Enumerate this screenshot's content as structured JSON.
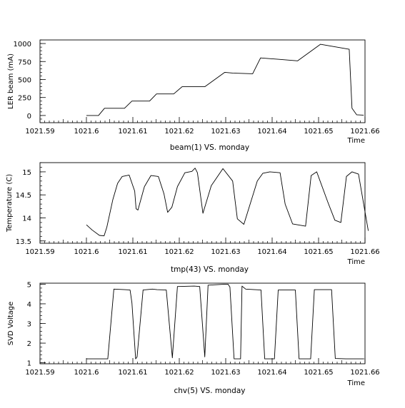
{
  "chart_data": [
    {
      "type": "line",
      "caption": "beam(1) VS. monday",
      "ylabel": "LER beam (mA)",
      "xlabel": "Time",
      "xlim": [
        1021.59,
        1021.66
      ],
      "ylim": [
        -100,
        1050
      ],
      "x_ticks": [
        1021.59,
        1021.6,
        1021.61,
        1021.62,
        1021.63,
        1021.64,
        1021.65,
        1021.66
      ],
      "x_tick_labels": [
        "1021.59",
        "1021.6",
        "1021.61",
        "1021.62",
        "1021.63",
        "1021.64",
        "1021.65",
        "1021.66"
      ],
      "y_ticks": [
        0,
        250,
        500,
        750,
        1000
      ],
      "y_tick_labels": [
        "0",
        "250",
        "500",
        "750",
        "1000"
      ],
      "series": [
        {
          "x": [
            1021.6,
            1021.6026,
            1021.6039,
            1021.6082,
            1021.6098,
            1021.6136,
            1021.6151,
            1021.6188,
            1021.6206,
            1021.6243,
            1021.6255,
            1021.6298,
            1021.6315,
            1021.6358,
            1021.6375,
            1021.6415,
            1021.6455,
            1021.6504,
            1021.6566,
            1021.6572,
            1021.6582,
            1021.6597
          ],
          "y": [
            0,
            0,
            100,
            100,
            200,
            200,
            300,
            300,
            400,
            400,
            400,
            600,
            590,
            580,
            800,
            780,
            760,
            990,
            920,
            100,
            10,
            5
          ]
        }
      ]
    },
    {
      "type": "line",
      "caption": "tmp(43) VS. monday",
      "ylabel": "Temperature (C)",
      "xlabel": "Time",
      "xlim": [
        1021.59,
        1021.66
      ],
      "ylim": [
        13.45,
        15.2
      ],
      "x_ticks": [
        1021.59,
        1021.6,
        1021.61,
        1021.62,
        1021.63,
        1021.64,
        1021.65,
        1021.66
      ],
      "x_tick_labels": [
        "1021.59",
        "1021.6",
        "1021.61",
        "1021.62",
        "1021.63",
        "1021.64",
        "1021.65",
        "1021.66"
      ],
      "y_ticks": [
        13.5,
        14,
        14.5,
        15
      ],
      "y_tick_labels": [
        "13.5",
        "14",
        "14.5",
        "15"
      ],
      "series": [
        {
          "x": [
            1021.6,
            1021.6012,
            1021.6028,
            1021.6038,
            1021.6044,
            1021.6057,
            1021.6067,
            1021.6077,
            1021.6092,
            1021.6104,
            1021.6107,
            1021.6111,
            1021.6125,
            1021.6139,
            1021.6155,
            1021.6167,
            1021.6175,
            1021.6184,
            1021.6196,
            1021.6212,
            1021.6227,
            1021.6234,
            1021.6239,
            1021.6251,
            1021.6269,
            1021.6294,
            1021.6315,
            1021.6325,
            1021.6339,
            1021.6368,
            1021.638,
            1021.6395,
            1021.6417,
            1021.6428,
            1021.6444,
            1021.6472,
            1021.6484,
            1021.6496,
            1021.652,
            1021.6535,
            1021.6548,
            1021.656,
            1021.6572,
            1021.6586,
            1021.6607
          ],
          "y": [
            13.85,
            13.74,
            13.62,
            13.61,
            13.8,
            14.4,
            14.75,
            14.9,
            14.93,
            14.58,
            14.2,
            14.17,
            14.68,
            14.92,
            14.9,
            14.52,
            14.12,
            14.23,
            14.68,
            14.98,
            15.01,
            15.08,
            14.98,
            14.1,
            14.7,
            15.07,
            14.8,
            13.98,
            13.86,
            14.8,
            14.97,
            15.0,
            14.98,
            14.3,
            13.87,
            13.82,
            14.92,
            15.0,
            14.34,
            13.95,
            13.9,
            14.9,
            15.0,
            14.95,
            13.72
          ]
        }
      ]
    },
    {
      "type": "line",
      "caption": "chv(5) VS. monday",
      "ylabel": "SVD Voltage",
      "xlabel": "Time",
      "xlim": [
        1021.59,
        1021.66
      ],
      "ylim": [
        0.95,
        5.05
      ],
      "x_ticks": [
        1021.59,
        1021.6,
        1021.61,
        1021.62,
        1021.63,
        1021.64,
        1021.65,
        1021.66
      ],
      "x_tick_labels": [
        "1021.59",
        "1021.6",
        "1021.61",
        "1021.62",
        "1021.63",
        "1021.64",
        "1021.65",
        "1021.66"
      ],
      "y_ticks": [
        1,
        2,
        3,
        4,
        5
      ],
      "y_tick_labels": [
        "1",
        "2",
        "3",
        "4",
        "5"
      ],
      "series": [
        {
          "x": [
            1021.6,
            1021.6034,
            1021.6046,
            1021.6059,
            1021.6083,
            1021.6094,
            1021.6098,
            1021.6106,
            1021.6109,
            1021.6122,
            1021.6142,
            1021.6152,
            1021.6172,
            1021.6185,
            1021.6196,
            1021.6232,
            1021.6244,
            1021.6255,
            1021.6262,
            1021.6298,
            1021.6305,
            1021.6309,
            1021.6318,
            1021.6332,
            1021.6335,
            1021.6343,
            1021.6376,
            1021.6384,
            1021.6405,
            1021.6413,
            1021.645,
            1021.6458,
            1021.6483,
            1021.6491,
            1021.6528,
            1021.6536,
            1021.6559,
            1021.6567,
            1021.6598
          ],
          "y": [
            1.2,
            1.2,
            1.2,
            4.75,
            4.72,
            4.7,
            4.05,
            1.2,
            1.3,
            4.7,
            4.75,
            4.72,
            4.7,
            1.25,
            4.88,
            4.9,
            4.88,
            1.3,
            4.95,
            5.0,
            5.0,
            4.85,
            1.2,
            1.2,
            4.9,
            4.75,
            4.7,
            1.2,
            1.2,
            4.7,
            4.7,
            1.2,
            1.2,
            4.72,
            4.72,
            1.22,
            1.2,
            1.2,
            1.2
          ]
        }
      ]
    }
  ]
}
